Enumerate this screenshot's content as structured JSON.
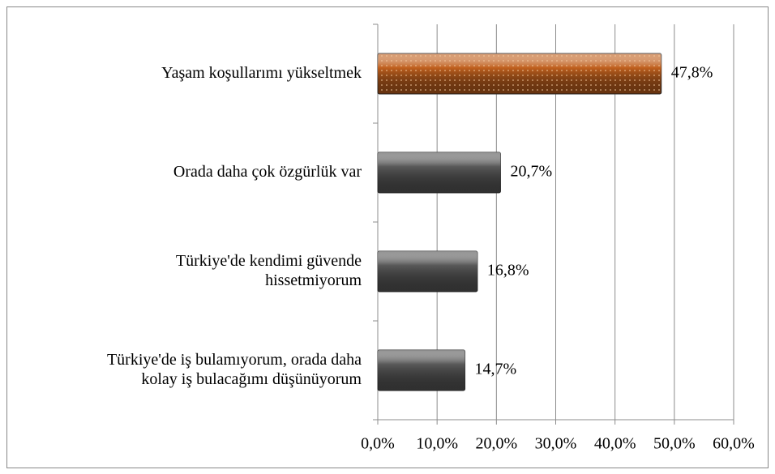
{
  "chart_data": {
    "type": "bar",
    "orientation": "horizontal",
    "categories": [
      "Yaşam koşullarımı yükseltmek",
      "Orada daha çok özgürlük var",
      "Türkiye'de kendimi güvende\nhissetmiyorum",
      "Türkiye'de iş bulamıyorum, orada daha\nkolay iş bulacağımı düşünüyorum"
    ],
    "values": [
      47.8,
      20.7,
      16.8,
      14.7
    ],
    "value_labels": [
      "47,8%",
      "20,7%",
      "16,8%",
      "14,7%"
    ],
    "colors": [
      "#c0601e",
      "#595959",
      "#595959",
      "#595959"
    ],
    "xlim": [
      0,
      60
    ],
    "xticks": [
      {
        "value": 0,
        "label": "0,0%"
      },
      {
        "value": 10,
        "label": "10,0%"
      },
      {
        "value": 20,
        "label": "20,0%"
      },
      {
        "value": 30,
        "label": "30,0%"
      },
      {
        "value": 40,
        "label": "40,0%"
      },
      {
        "value": 50,
        "label": "50,0%"
      },
      {
        "value": 60,
        "label": "60,0%"
      }
    ],
    "grid": true
  }
}
